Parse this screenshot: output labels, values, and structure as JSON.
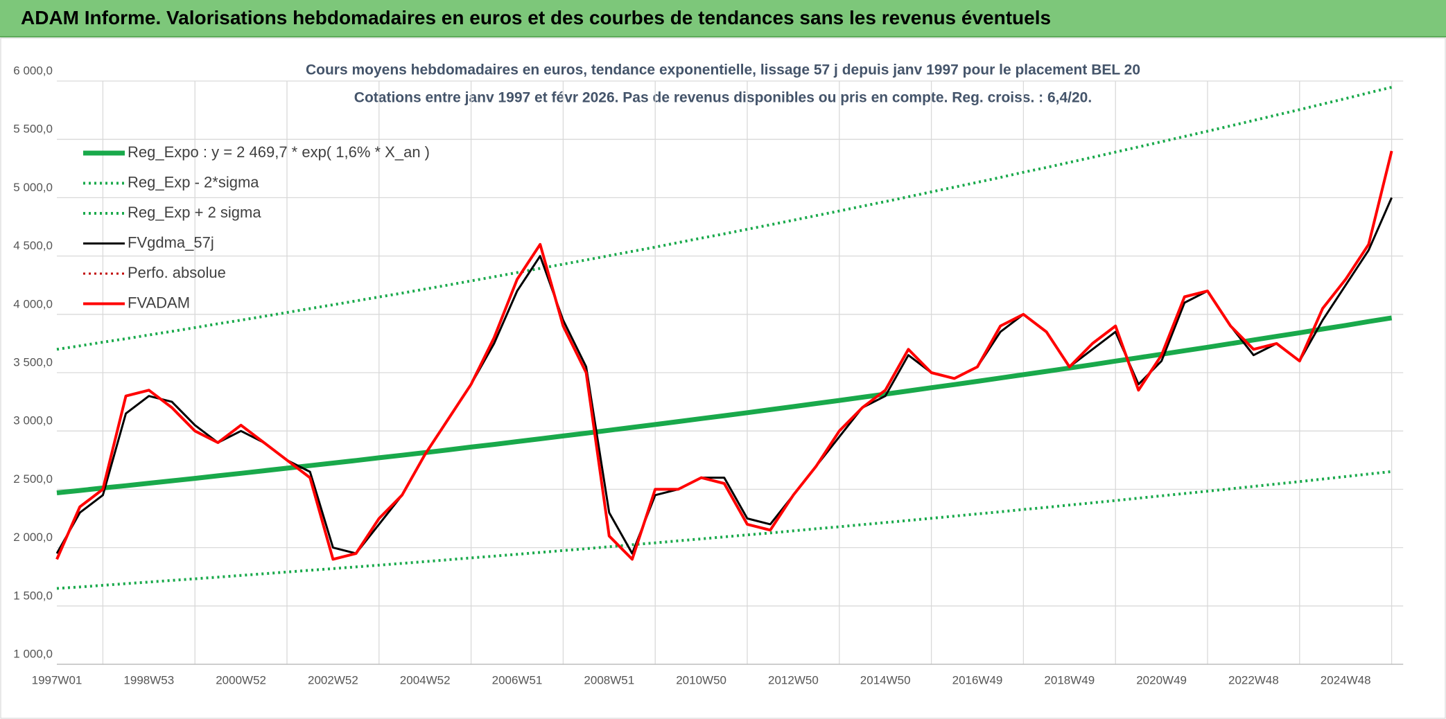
{
  "header": {
    "title": "ADAM Informe. Valorisations hebdomadaires en euros et des courbes de tendances sans les revenus éventuels"
  },
  "chart_data": {
    "type": "line",
    "title": "Cours moyens hebdomadaires en euros, tendance exponentielle, lissage 57 j depuis janv 1997 pour le placement BEL 20",
    "subtitle": "Cotations entre janv 1997 et févr 2026. Pas de revenus disponibles ou pris en compte. Reg. croiss. : 6,4/20.",
    "categories": [
      "1997W01",
      null,
      null,
      null,
      "1998W53",
      null,
      null,
      null,
      "2000W52",
      null,
      null,
      null,
      "2002W52",
      null,
      null,
      null,
      "2004W52",
      null,
      null,
      null,
      "2006W51",
      null,
      null,
      null,
      "2008W51",
      null,
      null,
      null,
      "2010W50",
      null,
      null,
      null,
      "2012W50",
      null,
      null,
      null,
      "2014W50",
      null,
      null,
      null,
      "2016W49",
      null,
      null,
      null,
      "2018W49",
      null,
      null,
      null,
      "2020W49",
      null,
      null,
      null,
      "2022W48",
      null,
      null,
      null,
      "2024W48",
      null,
      null
    ],
    "ylim": [
      1000,
      6000
    ],
    "yticks": [
      {
        "value": 1000,
        "label": "1 000,0"
      },
      {
        "value": 1500,
        "label": "1 500,0"
      },
      {
        "value": 2000,
        "label": "2 000,0"
      },
      {
        "value": 2500,
        "label": "2 500,0"
      },
      {
        "value": 3000,
        "label": "3 000,0"
      },
      {
        "value": 3500,
        "label": "3 500,0"
      },
      {
        "value": 4000,
        "label": "4 000,0"
      },
      {
        "value": 4500,
        "label": "4 500,0"
      },
      {
        "value": 5000,
        "label": "5 000,0"
      },
      {
        "value": 5500,
        "label": "5 500,0"
      },
      {
        "value": 6000,
        "label": "6 000,0"
      }
    ],
    "grid": true,
    "legend": "top-left",
    "series": [
      {
        "name": "Reg_Expo : y = 2 469,7 * exp( 1,6% *  X_an )",
        "color": "#19a94b",
        "style": "solid",
        "width": 7,
        "values": [
          2470,
          2490,
          2511,
          2531,
          2552,
          2573,
          2594,
          2616,
          2637,
          2659,
          2681,
          2703,
          2725,
          2747,
          2770,
          2792,
          2815,
          2838,
          2862,
          2885,
          2909,
          2933,
          2957,
          2981,
          3006,
          3031,
          3055,
          3081,
          3106,
          3131,
          3157,
          3183,
          3209,
          3236,
          3262,
          3289,
          3316,
          3343,
          3371,
          3398,
          3426,
          3454,
          3483,
          3511,
          3540,
          3569,
          3599,
          3628,
          3658,
          3688,
          3718,
          3749,
          3780,
          3811,
          3842,
          3874,
          3905,
          3938,
          3970
        ]
      },
      {
        "name": "Reg_Exp - 2*sigma",
        "color": "#19a94b",
        "style": "dotted",
        "width": 4,
        "values": [
          1650,
          1663,
          1677,
          1691,
          1705,
          1719,
          1733,
          1747,
          1762,
          1776,
          1791,
          1806,
          1820,
          1835,
          1850,
          1865,
          1880,
          1896,
          1912,
          1927,
          1943,
          1959,
          1975,
          1991,
          2008,
          2025,
          2041,
          2058,
          2075,
          2092,
          2109,
          2126,
          2144,
          2162,
          2179,
          2197,
          2215,
          2233,
          2252,
          2270,
          2289,
          2307,
          2327,
          2345,
          2365,
          2384,
          2404,
          2424,
          2444,
          2464,
          2484,
          2504,
          2525,
          2546,
          2566,
          2588,
          2609,
          2631,
          2652
        ]
      },
      {
        "name": "Reg_Exp + 2 sigma",
        "color": "#19a94b",
        "style": "dotted",
        "width": 4,
        "values": [
          3700,
          3730,
          3761,
          3791,
          3823,
          3854,
          3886,
          3919,
          3950,
          3983,
          4016,
          4049,
          4082,
          4115,
          4149,
          4182,
          4217,
          4251,
          4287,
          4322,
          4358,
          4394,
          4430,
          4466,
          4503,
          4540,
          4576,
          4615,
          4653,
          4690,
          4729,
          4768,
          4807,
          4847,
          4886,
          4927,
          4967,
          5008,
          5050,
          5090,
          5132,
          5174,
          5218,
          5259,
          5303,
          5346,
          5391,
          5435,
          5480,
          5525,
          5570,
          5616,
          5662,
          5709,
          5755,
          5803,
          5850,
          5899,
          5947
        ]
      },
      {
        "name": "FVgdma_57j",
        "color": "#000000",
        "style": "solid",
        "width": 3,
        "values": [
          1950,
          2300,
          2450,
          3150,
          3300,
          3250,
          3050,
          2900,
          3000,
          2900,
          2750,
          2650,
          2000,
          1950,
          2200,
          2450,
          2800,
          3100,
          3400,
          3750,
          4200,
          4500,
          3950,
          3550,
          2300,
          1950,
          2450,
          2500,
          2600,
          2600,
          2250,
          2200,
          2450,
          2700,
          2950,
          3200,
          3300,
          3650,
          3500,
          3450,
          3550,
          3850,
          4000,
          3850,
          3550,
          3700,
          3850,
          3400,
          3600,
          4100,
          4200,
          3900,
          3650,
          3750,
          3600,
          3950,
          4250,
          4550,
          5000
        ]
      },
      {
        "name": "Perfo. absolue",
        "color": "#c00000",
        "style": "dotted",
        "width": 3,
        "values": [
          null,
          null,
          null,
          null,
          null,
          null,
          null,
          null,
          null,
          null,
          null,
          null,
          null,
          null,
          null,
          null,
          null,
          null,
          null,
          null,
          null,
          null,
          null,
          null,
          null,
          null,
          null,
          null,
          null,
          null,
          null,
          null,
          null,
          null,
          null,
          null,
          null,
          null,
          null,
          null,
          null,
          null,
          null,
          null,
          null,
          null,
          null,
          null,
          null,
          null,
          null,
          null,
          null,
          null,
          null,
          null,
          null,
          null,
          null
        ]
      },
      {
        "name": "FVADAM",
        "color": "#ff0000",
        "style": "solid",
        "width": 4,
        "values": [
          1900,
          2350,
          2500,
          3300,
          3350,
          3200,
          3000,
          2900,
          3050,
          2900,
          2750,
          2600,
          1900,
          1950,
          2250,
          2450,
          2800,
          3100,
          3400,
          3800,
          4300,
          4600,
          3900,
          3500,
          2100,
          1900,
          2500,
          2500,
          2600,
          2550,
          2200,
          2150,
          2450,
          2700,
          3000,
          3200,
          3350,
          3700,
          3500,
          3450,
          3550,
          3900,
          4000,
          3850,
          3550,
          3750,
          3900,
          3350,
          3650,
          4150,
          4200,
          3900,
          3700,
          3750,
          3600,
          4050,
          4300,
          4600,
          5400
        ]
      }
    ]
  }
}
